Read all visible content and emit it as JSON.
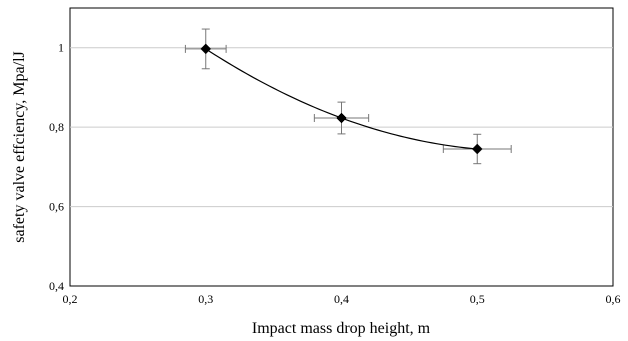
{
  "chart_data": {
    "type": "scatter",
    "title": "",
    "xlabel": "Impact mass drop height, m",
    "ylabel": "safety valve effciency, Mpa/lJ",
    "xlim": [
      0.2,
      0.6
    ],
    "ylim": [
      0.4,
      1.1
    ],
    "x_ticks": [
      "0,2",
      "0,3",
      "0,4",
      "0,5",
      "0,6"
    ],
    "y_ticks": [
      "0,4",
      "0,6",
      "0,8",
      "1"
    ],
    "grid": "horizontal",
    "legend": "none",
    "trendline": "smooth curve through points",
    "series": [
      {
        "x": [
          0.3,
          0.4,
          0.5
        ],
        "y": [
          0.997,
          0.823,
          0.745
        ],
        "x_err": [
          0.015,
          0.02,
          0.025
        ],
        "y_err": [
          0.05,
          0.04,
          0.037
        ]
      }
    ],
    "colors": {
      "marker": "#000000",
      "grid": "#cccccc",
      "errorbar": "#777777",
      "curve": "#000000"
    }
  }
}
